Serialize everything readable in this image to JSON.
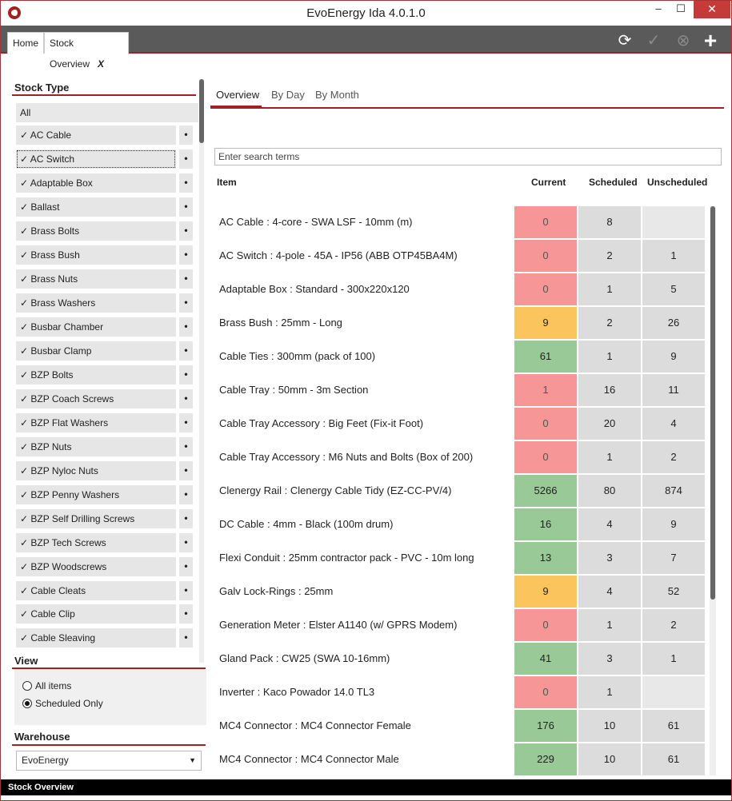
{
  "window": {
    "title": "EvoEnergy Ida 4.0.1.0",
    "min": "–",
    "max": "☐",
    "close": "✕"
  },
  "doc_tabs": {
    "home": "Home",
    "stock": "Stock Overview",
    "close": "X"
  },
  "toolbar": {
    "refresh": "⟳",
    "confirm": "✓",
    "cancel": "⊗",
    "add": "+"
  },
  "stock_type": {
    "header": "Stock Type",
    "all": "All",
    "dot": "•",
    "items": [
      "✓ AC Cable",
      "✓ AC Switch",
      "✓ Adaptable Box",
      "✓ Ballast",
      "✓ Brass Bolts",
      "✓ Brass Bush",
      "✓ Brass Nuts",
      "✓ Brass Washers",
      "✓ Busbar Chamber",
      "✓ Busbar Clamp",
      "✓ BZP Bolts",
      "✓ BZP Coach Screws",
      "✓ BZP Flat Washers",
      "✓ BZP Nuts",
      "✓ BZP Nyloc Nuts",
      "✓ BZP Penny Washers",
      "✓ BZP Self Drilling Screws",
      "✓ BZP Tech Screws",
      "✓ BZP Woodscrews",
      "✓ Cable Cleats",
      "✓ Cable Clip",
      "✓ Cable Sleaving"
    ]
  },
  "view": {
    "header": "View",
    "all_items": "All items",
    "scheduled_only": "Scheduled Only",
    "selected": "Scheduled Only"
  },
  "warehouse": {
    "header": "Warehouse",
    "value": "EvoEnergy",
    "arrow": "▼"
  },
  "tabs": [
    "Overview",
    "By Day",
    "By Month"
  ],
  "search": {
    "placeholder": "Enter search terms"
  },
  "columns": {
    "item": "Item",
    "current": "Current",
    "scheduled": "Scheduled",
    "unscheduled": "Unscheduled"
  },
  "status_colors": {
    "red": "#f79696",
    "orange": "#fcc45d",
    "green": "#98c996",
    "accent": "#a32020"
  },
  "rows": [
    {
      "item": "AC Cable : 4-core - SWA LSF - 10mm (m)",
      "current": "0",
      "status": "red",
      "scheduled": "8",
      "unscheduled": ""
    },
    {
      "item": "AC Switch : 4-pole - 45A - IP56 (ABB OTP45BA4M)",
      "current": "0",
      "status": "red",
      "scheduled": "2",
      "unscheduled": "1"
    },
    {
      "item": "Adaptable Box : Standard - 300x220x120",
      "current": "0",
      "status": "red",
      "scheduled": "1",
      "unscheduled": "5"
    },
    {
      "item": "Brass Bush : 25mm - Long",
      "current": "9",
      "status": "orange",
      "scheduled": "2",
      "unscheduled": "26"
    },
    {
      "item": "Cable Ties : 300mm (pack of 100)",
      "current": "61",
      "status": "green",
      "scheduled": "1",
      "unscheduled": "9"
    },
    {
      "item": "Cable Tray : 50mm - 3m Section",
      "current": "1",
      "status": "red",
      "scheduled": "16",
      "unscheduled": "11"
    },
    {
      "item": "Cable Tray Accessory : Big Feet (Fix-it Foot)",
      "current": "0",
      "status": "red",
      "scheduled": "20",
      "unscheduled": "4"
    },
    {
      "item": "Cable Tray Accessory : M6 Nuts and Bolts (Box of 200)",
      "current": "0",
      "status": "red",
      "scheduled": "1",
      "unscheduled": "2"
    },
    {
      "item": "Clenergy Rail : Clenergy Cable Tidy (EZ-CC-PV/4)",
      "current": "5266",
      "status": "green",
      "scheduled": "80",
      "unscheduled": "874"
    },
    {
      "item": "DC Cable : 4mm - Black (100m drum)",
      "current": "16",
      "status": "green",
      "scheduled": "4",
      "unscheduled": "9"
    },
    {
      "item": "Flexi Conduit : 25mm contractor pack - PVC - 10m long",
      "current": "13",
      "status": "green",
      "scheduled": "3",
      "unscheduled": "7"
    },
    {
      "item": "Galv Lock-Rings : 25mm",
      "current": "9",
      "status": "orange",
      "scheduled": "4",
      "unscheduled": "52"
    },
    {
      "item": "Generation Meter : Elster A1140 (w/ GPRS Modem)",
      "current": "0",
      "status": "red",
      "scheduled": "1",
      "unscheduled": "2"
    },
    {
      "item": "Gland Pack : CW25 (SWA 10-16mm)",
      "current": "41",
      "status": "green",
      "scheduled": "3",
      "unscheduled": "1"
    },
    {
      "item": "Inverter : Kaco Powador 14.0 TL3",
      "current": "0",
      "status": "red",
      "scheduled": "1",
      "unscheduled": ""
    },
    {
      "item": "MC4 Connector : MC4 Connector Female",
      "current": "176",
      "status": "green",
      "scheduled": "10",
      "unscheduled": "61"
    },
    {
      "item": "MC4 Connector : MC4 Connector Male",
      "current": "229",
      "status": "green",
      "scheduled": "10",
      "unscheduled": "61"
    }
  ],
  "statusbar": {
    "text": "Stock Overview"
  }
}
